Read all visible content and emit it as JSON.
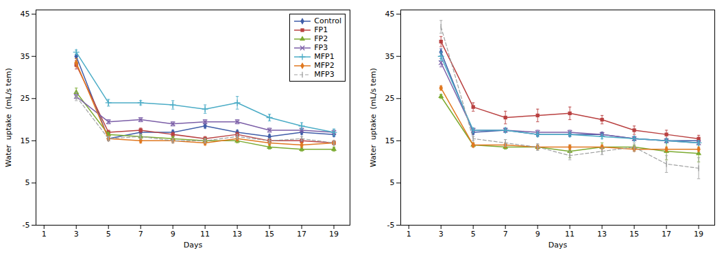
{
  "chart_data": [
    {
      "type": "line",
      "xlabel": "Days",
      "ylabel": "Water  uptake  (mL/s tem)",
      "x": [
        1,
        3,
        5,
        7,
        9,
        11,
        13,
        15,
        17,
        19
      ],
      "xlim": [
        0.5,
        20
      ],
      "xticks": [
        1,
        3,
        5,
        7,
        9,
        11,
        13,
        15,
        17,
        19
      ],
      "ylim": [
        -5,
        46
      ],
      "yticks": [
        -5,
        5,
        15,
        25,
        35,
        45
      ],
      "grid": false,
      "legend": "upper right",
      "series": [
        {
          "name": "Control",
          "color": "#3F5DA8",
          "marker": "diamond",
          "line_style": "solid",
          "values": [
            null,
            35.0,
            15.5,
            17.0,
            17.0,
            18.5,
            17.0,
            16.0,
            17.0,
            16.5
          ],
          "errors": [
            0,
            0.5,
            0.5,
            0.5,
            0.5,
            0.5,
            0.5,
            0.5,
            0.5,
            0.5
          ]
        },
        {
          "name": "FP1",
          "color": "#B94040",
          "marker": "square",
          "line_style": "solid",
          "values": [
            null,
            33.0,
            17.0,
            17.5,
            16.5,
            15.5,
            16.5,
            15.0,
            15.0,
            14.5
          ],
          "errors": [
            0,
            1.0,
            0.5,
            0.5,
            0.5,
            0.5,
            0.5,
            0.5,
            0.5,
            0.5
          ]
        },
        {
          "name": "FP2",
          "color": "#7BAA30",
          "marker": "triangle",
          "line_style": "solid",
          "values": [
            null,
            26.5,
            16.5,
            16.0,
            15.5,
            15.0,
            15.0,
            13.5,
            13.0,
            13.0
          ],
          "errors": [
            0,
            1.0,
            0.5,
            0.5,
            0.5,
            0.5,
            0.5,
            0.5,
            0.5,
            0.5
          ]
        },
        {
          "name": "FP3",
          "color": "#7B5EA7",
          "marker": "times",
          "line_style": "solid",
          "values": [
            null,
            25.5,
            19.5,
            20.0,
            19.0,
            19.5,
            19.5,
            17.5,
            17.5,
            17.0
          ],
          "errors": [
            0,
            0.5,
            0.5,
            0.5,
            0.5,
            0.5,
            0.5,
            0.5,
            0.5,
            0.5
          ]
        },
        {
          "name": "MFP1",
          "color": "#4BACC6",
          "marker": "plus",
          "line_style": "solid",
          "values": [
            null,
            36.0,
            24.0,
            24.0,
            23.5,
            22.5,
            24.0,
            20.5,
            18.5,
            17.0
          ],
          "errors": [
            0,
            0.5,
            0.8,
            0.5,
            1.0,
            1.0,
            1.5,
            0.8,
            0.8,
            0.8
          ]
        },
        {
          "name": "MFP2",
          "color": "#E07820",
          "marker": "diamond",
          "line_style": "solid",
          "values": [
            null,
            33.5,
            15.5,
            15.0,
            15.0,
            14.5,
            15.5,
            14.5,
            14.0,
            14.5
          ],
          "errors": [
            0,
            1.0,
            0.5,
            0.5,
            0.5,
            0.5,
            0.5,
            0.5,
            0.5,
            0.5
          ]
        },
        {
          "name": "MFP3",
          "color": "#9FA0A0",
          "marker": "vline",
          "line_style": "dashed",
          "values": [
            null,
            25.5,
            15.5,
            16.0,
            15.0,
            15.0,
            16.0,
            15.0,
            15.5,
            14.5
          ],
          "errors": [
            0,
            1.0,
            0.5,
            0.5,
            0.5,
            0.5,
            0.5,
            0.5,
            0.5,
            0.5
          ]
        }
      ]
    },
    {
      "type": "line",
      "xlabel": "Days",
      "ylabel": "Water  uptake  (mL/s tem)",
      "x": [
        1,
        3,
        5,
        7,
        9,
        11,
        13,
        15,
        17,
        19
      ],
      "xlim": [
        0.5,
        20
      ],
      "xticks": [
        1,
        3,
        5,
        7,
        9,
        11,
        13,
        15,
        17,
        19
      ],
      "ylim": [
        -5,
        46
      ],
      "yticks": [
        -5,
        5,
        15,
        25,
        35,
        45
      ],
      "grid": false,
      "series": [
        {
          "name": "Control",
          "color": "#3F5DA8",
          "marker": "diamond",
          "line_style": "solid",
          "values": [
            null,
            36.0,
            17.0,
            17.5,
            16.5,
            16.5,
            16.5,
            15.5,
            15.0,
            15.0
          ],
          "errors": [
            0,
            0.8,
            0.5,
            0.5,
            0.5,
            0.5,
            0.5,
            0.5,
            0.5,
            0.5
          ]
        },
        {
          "name": "FP1",
          "color": "#B94040",
          "marker": "square",
          "line_style": "solid",
          "values": [
            null,
            38.5,
            23.0,
            20.5,
            21.0,
            21.5,
            20.0,
            17.5,
            16.5,
            15.5
          ],
          "errors": [
            0,
            1.2,
            1.0,
            1.5,
            1.5,
            1.5,
            1.0,
            1.0,
            1.0,
            0.8
          ]
        },
        {
          "name": "FP2",
          "color": "#7BAA30",
          "marker": "triangle",
          "line_style": "solid",
          "values": [
            null,
            25.5,
            14.0,
            13.5,
            13.5,
            12.5,
            13.5,
            13.5,
            12.5,
            12.0
          ],
          "errors": [
            0,
            0.5,
            0.5,
            0.5,
            0.5,
            1.5,
            1.0,
            0.5,
            2.0,
            2.0
          ]
        },
        {
          "name": "FP3",
          "color": "#7B5EA7",
          "marker": "times",
          "line_style": "solid",
          "values": [
            null,
            33.5,
            17.5,
            17.5,
            17.0,
            17.0,
            16.5,
            15.5,
            15.0,
            14.5
          ],
          "errors": [
            0,
            1.0,
            0.5,
            0.5,
            0.5,
            0.5,
            0.5,
            0.5,
            0.5,
            0.5
          ]
        },
        {
          "name": "MFP1",
          "color": "#4BACC6",
          "marker": "plus",
          "line_style": "solid",
          "values": [
            null,
            35.0,
            17.5,
            17.5,
            16.5,
            16.5,
            16.0,
            15.5,
            15.0,
            14.5
          ],
          "errors": [
            0,
            1.0,
            0.5,
            0.5,
            0.5,
            0.5,
            0.5,
            0.5,
            0.5,
            0.5
          ]
        },
        {
          "name": "MFP2",
          "color": "#E07820",
          "marker": "diamond",
          "line_style": "solid",
          "values": [
            null,
            27.5,
            14.0,
            14.0,
            13.5,
            13.5,
            13.5,
            13.0,
            13.0,
            13.0
          ],
          "errors": [
            0,
            0.5,
            0.5,
            0.5,
            0.5,
            0.5,
            0.5,
            0.5,
            0.5,
            0.5
          ]
        },
        {
          "name": "MFP3",
          "color": "#9FA0A0",
          "marker": "vline",
          "line_style": "dashed",
          "values": [
            null,
            42.0,
            15.5,
            14.5,
            13.5,
            11.5,
            12.5,
            13.5,
            9.5,
            8.5
          ],
          "errors": [
            0,
            1.5,
            0.5,
            0.8,
            0.8,
            1.0,
            0.8,
            1.0,
            2.0,
            2.5
          ]
        }
      ]
    }
  ]
}
